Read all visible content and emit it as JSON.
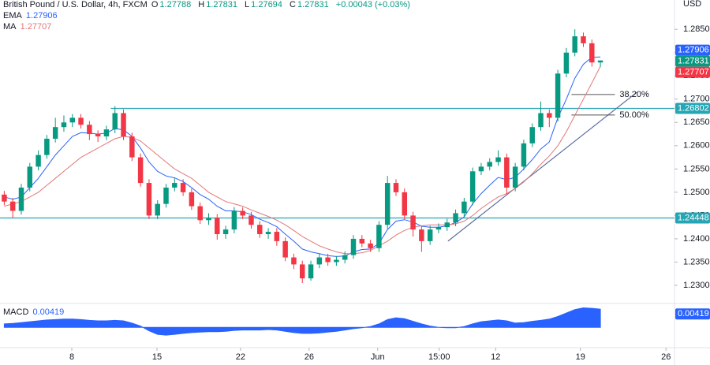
{
  "chart_data": {
    "type": "candlestick",
    "title": "British Pound / U.S. Dollar, 4h, FXCM",
    "ohlc_labels": [
      "O",
      "H",
      "L",
      "C"
    ],
    "change": "+0.00043 (+0.03%)",
    "currency": "USD",
    "xlim": [
      -0.5,
      78.7
    ],
    "xticks": [
      {
        "value": 7.93,
        "label": "8"
      },
      {
        "value": 17.93,
        "label": "15"
      },
      {
        "value": 27.74,
        "label": "22"
      },
      {
        "value": 35.8,
        "label": "26"
      },
      {
        "value": 43.85,
        "label": "Jun"
      },
      {
        "value": 51.07,
        "label": "15:00"
      },
      {
        "value": 57.7,
        "label": "12"
      },
      {
        "value": 67.65,
        "label": "19"
      },
      {
        "value": 77.7,
        "label": "26"
      }
    ],
    "ylim": [
      1.2261,
      1.2913
    ],
    "yticks": [
      {
        "value": 1.23,
        "label": "1.23000"
      },
      {
        "value": 1.235,
        "label": "1.23500"
      },
      {
        "value": 1.24,
        "label": "1.24000"
      },
      {
        "value": 1.245,
        "label": "1.24500"
      },
      {
        "value": 1.25,
        "label": "1.25000"
      },
      {
        "value": 1.255,
        "label": "1.25500"
      },
      {
        "value": 1.26,
        "label": "1.26000"
      },
      {
        "value": 1.265,
        "label": "1.26500"
      },
      {
        "value": 1.27,
        "label": "1.27000"
      },
      {
        "value": 1.275,
        "label": "1.27500"
      },
      {
        "value": 1.28,
        "label": "1.28000"
      },
      {
        "value": 1.285,
        "label": "1.28500"
      }
    ],
    "grid": false,
    "up_color": "#089981",
    "down_color": "#f23645",
    "open": [
      1.2495,
      1.248,
      1.246,
      1.251,
      1.2555,
      1.258,
      1.2615,
      1.264,
      1.265,
      1.266,
      1.2645,
      1.2625,
      1.262,
      1.2635,
      1.267,
      1.262,
      1.2575,
      1.252,
      1.245,
      1.2475,
      1.251,
      1.252,
      1.25,
      1.247,
      1.244,
      1.2445,
      1.241,
      1.242,
      1.246,
      1.245,
      1.243,
      1.241,
      1.2415,
      1.2395,
      1.236,
      1.2345,
      1.2315,
      1.2345,
      1.236,
      1.235,
      1.2355,
      1.2365,
      1.24,
      1.239,
      1.238,
      1.243,
      1.252,
      1.25,
      1.245,
      1.242,
      1.2395,
      1.242,
      1.2425,
      1.2435,
      1.2455,
      1.248,
      1.2545,
      1.2555,
      1.2565,
      1.2575,
      1.251,
      1.2555,
      1.2605,
      1.264,
      1.267,
      1.266,
      1.2755,
      1.28,
      1.2835,
      1.282,
      1.27788
    ],
    "high": [
      1.2503,
      1.2488,
      1.2518,
      1.2563,
      1.259,
      1.2623,
      1.266,
      1.2665,
      1.2668,
      1.2668,
      1.2653,
      1.2633,
      1.2643,
      1.2685,
      1.2678,
      1.2628,
      1.2583,
      1.2528,
      1.2483,
      1.2518,
      1.253,
      1.2528,
      1.2508,
      1.2478,
      1.2455,
      1.2453,
      1.2428,
      1.2468,
      1.2468,
      1.2458,
      1.2438,
      1.2423,
      1.2423,
      1.2403,
      1.2368,
      1.2353,
      1.2353,
      1.2368,
      1.2368,
      1.2363,
      1.2373,
      1.2408,
      1.2408,
      1.2398,
      1.2438,
      1.2535,
      1.2528,
      1.2508,
      1.2458,
      1.2428,
      1.2428,
      1.2433,
      1.2443,
      1.2463,
      1.2488,
      1.2553,
      1.2563,
      1.2573,
      1.259,
      1.2583,
      1.2563,
      1.2613,
      1.2648,
      1.2695,
      1.2678,
      1.2763,
      1.281,
      1.285,
      1.2843,
      1.2828,
      1.27831
    ],
    "low": [
      1.2472,
      1.2445,
      1.2452,
      1.2502,
      1.2547,
      1.2572,
      1.2607,
      1.263,
      1.264,
      1.2637,
      1.2612,
      1.2608,
      1.2612,
      1.2627,
      1.2612,
      1.2567,
      1.2512,
      1.2442,
      1.2442,
      1.2467,
      1.2502,
      1.2492,
      1.2462,
      1.2432,
      1.243,
      1.2398,
      1.24,
      1.2412,
      1.2442,
      1.2422,
      1.2402,
      1.24,
      1.2385,
      1.2352,
      1.2335,
      1.2305,
      1.231,
      1.2337,
      1.2342,
      1.2342,
      1.2347,
      1.2357,
      1.2382,
      1.2372,
      1.2372,
      1.2422,
      1.2492,
      1.2442,
      1.2405,
      1.2372,
      1.2387,
      1.2412,
      1.2417,
      1.2427,
      1.2447,
      1.2472,
      1.2537,
      1.2547,
      1.2557,
      1.2495,
      1.2502,
      1.2547,
      1.2597,
      1.2632,
      1.264,
      1.2652,
      1.2747,
      1.2792,
      1.2812,
      1.277,
      1.27694
    ],
    "close": [
      1.248,
      1.246,
      1.251,
      1.2555,
      1.258,
      1.2615,
      1.264,
      1.265,
      1.266,
      1.2645,
      1.2625,
      1.262,
      1.2635,
      1.267,
      1.262,
      1.2575,
      1.252,
      1.245,
      1.2475,
      1.251,
      1.252,
      1.25,
      1.247,
      1.244,
      1.2445,
      1.241,
      1.242,
      1.246,
      1.245,
      1.243,
      1.241,
      1.2415,
      1.2395,
      1.236,
      1.2345,
      1.2315,
      1.2345,
      1.236,
      1.235,
      1.2355,
      1.2365,
      1.24,
      1.239,
      1.238,
      1.243,
      1.252,
      1.25,
      1.245,
      1.242,
      1.2395,
      1.242,
      1.2425,
      1.2435,
      1.2455,
      1.248,
      1.2545,
      1.2555,
      1.2565,
      1.2575,
      1.251,
      1.2555,
      1.2605,
      1.264,
      1.267,
      1.266,
      1.2755,
      1.28,
      1.2835,
      1.282,
      1.27788,
      1.27831
    ],
    "overlays": [
      {
        "name": "EMA",
        "color": "#2962ff",
        "values": [
          1.249,
          1.2485,
          1.249,
          1.251,
          1.253,
          1.2555,
          1.258,
          1.26,
          1.262,
          1.2628,
          1.2627,
          1.2625,
          1.2627,
          1.2637,
          1.2634,
          1.262,
          1.2595,
          1.2565,
          1.2545,
          1.2535,
          1.2531,
          1.2523,
          1.251,
          1.2495,
          1.2485,
          1.247,
          1.246,
          1.246,
          1.2458,
          1.2452,
          1.2442,
          1.2435,
          1.2426,
          1.241,
          1.2395,
          1.2378,
          1.2372,
          1.2368,
          1.2364,
          1.2362,
          1.2363,
          1.2372,
          1.2377,
          1.2378,
          1.239,
          1.242,
          1.2438,
          1.2441,
          1.2436,
          1.2427,
          1.2425,
          1.2425,
          1.2428,
          1.2435,
          1.2447,
          1.2475,
          1.2497,
          1.2515,
          1.2532,
          1.2527,
          1.2532,
          1.255,
          1.257,
          1.2593,
          1.2608,
          1.266,
          1.27,
          1.2745,
          1.2775,
          1.279,
          1.27906
        ]
      },
      {
        "name": "MA",
        "color": "#e0787a",
        "values": [
          1.247,
          1.2475,
          1.248,
          1.249,
          1.25,
          1.2515,
          1.253,
          1.2545,
          1.256,
          1.2575,
          1.2585,
          1.2595,
          1.2605,
          1.2615,
          1.262,
          1.2618,
          1.261,
          1.2595,
          1.258,
          1.2565,
          1.255,
          1.254,
          1.253,
          1.2515,
          1.25,
          1.249,
          1.248,
          1.2475,
          1.247,
          1.2462,
          1.2455,
          1.2448,
          1.244,
          1.243,
          1.2418,
          1.2405,
          1.2395,
          1.2385,
          1.2378,
          1.2372,
          1.2368,
          1.2368,
          1.237,
          1.2375,
          1.2385,
          1.2395,
          1.2408,
          1.2418,
          1.2425,
          1.2428,
          1.243,
          1.243,
          1.243,
          1.2432,
          1.2438,
          1.245,
          1.2465,
          1.2478,
          1.249,
          1.2497,
          1.2508,
          1.2522,
          1.254,
          1.256,
          1.2578,
          1.26,
          1.263,
          1.2665,
          1.27,
          1.2735,
          1.27707
        ]
      }
    ],
    "hlines": [
      {
        "value": 1.26802,
        "start": 12.5,
        "color": "#26a6b5"
      },
      {
        "value": 1.24448,
        "start": -0.5,
        "color": "#26a6b5"
      }
    ],
    "trendline": {
      "x": [
        52.1,
        74.3
      ],
      "y": [
        1.2395,
        1.2715
      ],
      "color": "#5d6f9e"
    },
    "fib_levels": [
      {
        "label": "38.20%",
        "value": 1.271
      },
      {
        "label": "50.00%",
        "value": 1.2666
      }
    ],
    "fib_x": [
      66.6,
      71.7
    ],
    "fib_color": "#7e57c2",
    "macd": {
      "name": "MACD",
      "color": "#2962ff",
      "ylim": [
        -0.0045,
        0.0055
      ],
      "values": [
        0.0008,
        0.0009,
        0.0011,
        0.0013,
        0.0015,
        0.0017,
        0.0018,
        0.0019,
        0.0019,
        0.0018,
        0.0016,
        0.0015,
        0.0015,
        0.0016,
        0.0015,
        0.001,
        0.0003,
        -0.0008,
        -0.0016,
        -0.0018,
        -0.0016,
        -0.0014,
        -0.0012,
        -0.0011,
        -0.001,
        -0.001,
        -0.0009,
        -0.0007,
        -0.0006,
        -0.0006,
        -0.0006,
        -0.0005,
        -0.0006,
        -0.0009,
        -0.0012,
        -0.0014,
        -0.0014,
        -0.0013,
        -0.0011,
        -0.0009,
        -0.0006,
        -0.0003,
        -0.0001,
        0.0002,
        0.0008,
        0.0018,
        0.0022,
        0.002,
        0.0014,
        0.0008,
        0.0003,
        0.0,
        -0.0001,
        -0.0001,
        0.0002,
        0.0008,
        0.0013,
        0.0015,
        0.0017,
        0.0015,
        0.001,
        0.0011,
        0.0014,
        0.0016,
        0.0019,
        0.0025,
        0.0033,
        0.0041,
        0.0045,
        0.0044,
        0.00419
      ]
    }
  }
}
